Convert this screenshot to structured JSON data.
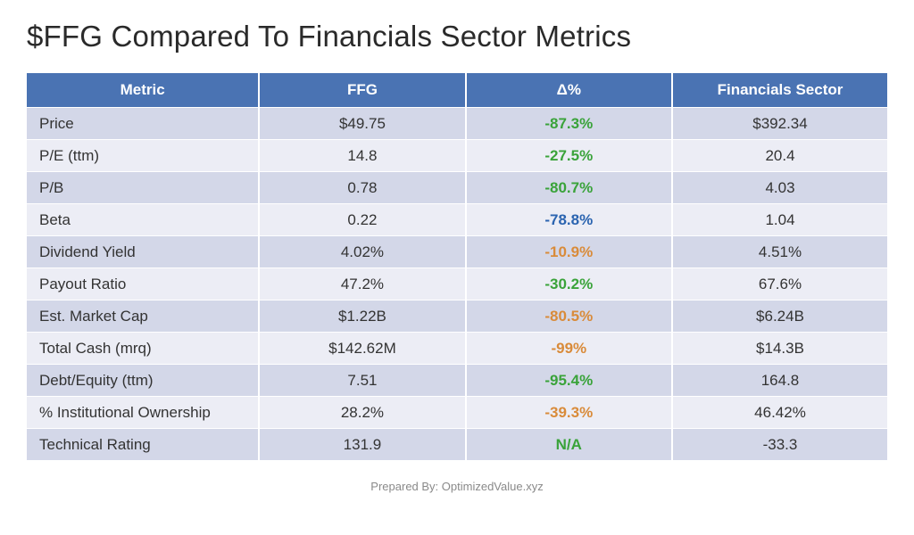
{
  "title": "$FFG Compared To Financials Sector Metrics",
  "footer": "Prepared By: OptimizedValue.xyz",
  "table": {
    "type": "table",
    "header_bg": "#4a73b3",
    "header_fg": "#ffffff",
    "row_odd_bg": "#ecedf5",
    "row_even_bg": "#d3d7e8",
    "text_color": "#333333",
    "delta_colors": {
      "green": "#3aa33a",
      "blue": "#2b64b0",
      "orange": "#d98b3a"
    },
    "columns": [
      {
        "key": "metric",
        "label": "Metric",
        "align": "left",
        "width_pct": 27
      },
      {
        "key": "ffg",
        "label": "FFG",
        "align": "center",
        "width_pct": 24
      },
      {
        "key": "delta",
        "label": "Δ%",
        "align": "center",
        "width_pct": 24
      },
      {
        "key": "sector",
        "label": "Financials Sector",
        "align": "center",
        "width_pct": 25
      }
    ],
    "rows": [
      {
        "metric": "Price",
        "ffg": "$49.75",
        "delta": "-87.3%",
        "delta_style": "green",
        "sector": "$392.34"
      },
      {
        "metric": "P/E (ttm)",
        "ffg": "14.8",
        "delta": "-27.5%",
        "delta_style": "green",
        "sector": "20.4"
      },
      {
        "metric": "P/B",
        "ffg": "0.78",
        "delta": "-80.7%",
        "delta_style": "green",
        "sector": "4.03"
      },
      {
        "metric": "Beta",
        "ffg": "0.22",
        "delta": "-78.8%",
        "delta_style": "blue",
        "sector": "1.04"
      },
      {
        "metric": "Dividend Yield",
        "ffg": "4.02%",
        "delta": "-10.9%",
        "delta_style": "orange",
        "sector": "4.51%"
      },
      {
        "metric": "Payout Ratio",
        "ffg": "47.2%",
        "delta": "-30.2%",
        "delta_style": "green",
        "sector": "67.6%"
      },
      {
        "metric": "Est. Market Cap",
        "ffg": "$1.22B",
        "delta": "-80.5%",
        "delta_style": "orange",
        "sector": "$6.24B"
      },
      {
        "metric": "Total Cash (mrq)",
        "ffg": "$142.62M",
        "delta": "-99%",
        "delta_style": "orange",
        "sector": "$14.3B"
      },
      {
        "metric": "Debt/Equity (ttm)",
        "ffg": "7.51",
        "delta": "-95.4%",
        "delta_style": "green",
        "sector": "164.8"
      },
      {
        "metric": "% Institutional Ownership",
        "ffg": "28.2%",
        "delta": "-39.3%",
        "delta_style": "orange",
        "sector": "46.42%"
      },
      {
        "metric": "Technical Rating",
        "ffg": "131.9",
        "delta": "N/A",
        "delta_style": "green",
        "sector": "-33.3"
      }
    ]
  }
}
